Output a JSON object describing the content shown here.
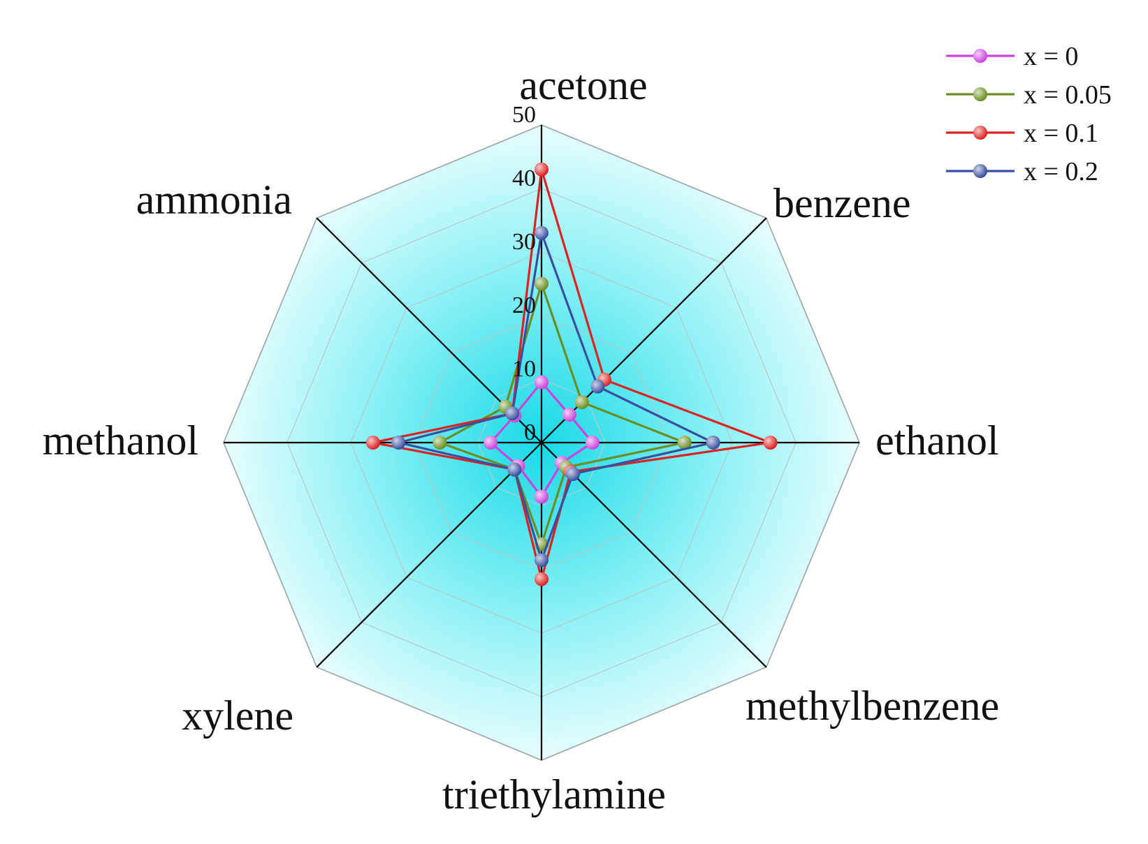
{
  "chart_data": {
    "type": "radar",
    "axes": [
      "acetone",
      "benzene",
      "ethanol",
      "methylbenzene",
      "triethylamine",
      "xylene",
      "methanol",
      "ammonia"
    ],
    "rlim": [
      0,
      50
    ],
    "ticks": [
      "0",
      "10",
      "20",
      "30",
      "40",
      "50"
    ],
    "tick_values": [
      0,
      10,
      20,
      30,
      40,
      50
    ],
    "grid": true,
    "legend_position": "top-right",
    "series": [
      {
        "name": "x = 0",
        "color": "#cc44dd",
        "values": [
          9.5,
          6.2,
          8.0,
          4.5,
          8.5,
          5.2,
          8.0,
          6.0
        ]
      },
      {
        "name": "x = 0.05",
        "color": "#6b8e23",
        "values": [
          25.0,
          9.0,
          22.5,
          5.5,
          16.0,
          6.0,
          16.0,
          8.0
        ]
      },
      {
        "name": "x = 0.1",
        "color": "#dd2222",
        "values": [
          43.0,
          14.0,
          36.0,
          6.5,
          21.5,
          6.0,
          26.5,
          6.5
        ]
      },
      {
        "name": "x = 0.2",
        "color": "#3a4fa0",
        "values": [
          33.0,
          12.5,
          27.0,
          7.0,
          18.5,
          6.0,
          22.5,
          6.5
        ]
      }
    ]
  }
}
